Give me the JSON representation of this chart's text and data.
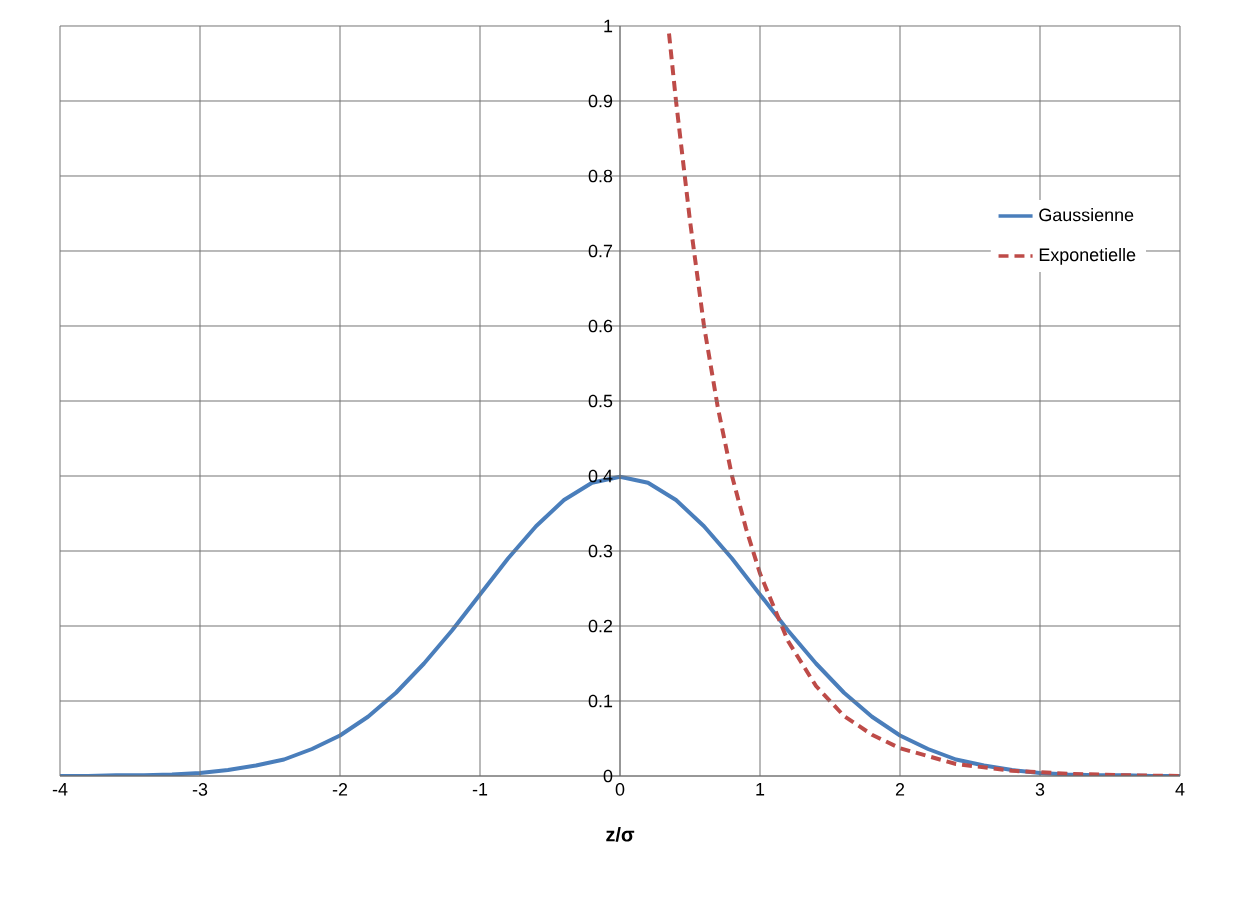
{
  "chart_data": {
    "type": "line",
    "xlabel": "**z/σ**",
    "xlim": [
      -4,
      4
    ],
    "xticks": [
      -4,
      -3,
      -2,
      -1,
      0,
      1,
      2,
      3,
      4
    ],
    "ylim": [
      0,
      1
    ],
    "yticks": [
      0,
      0.1,
      0.2,
      0.3,
      0.4,
      0.5,
      0.6,
      0.7,
      0.8,
      0.9,
      1
    ],
    "grid": true,
    "legend": "right",
    "marker": "none",
    "series": [
      {
        "name": "Gaussienne",
        "color": "#4a7ebb",
        "line_style": "solid",
        "x": [
          -4,
          -3.8,
          -3.6,
          -3.4,
          -3.2,
          -3,
          -2.8,
          -2.6,
          -2.4,
          -2.2,
          -2,
          -1.8,
          -1.6,
          -1.4,
          -1.2,
          -1,
          -0.8,
          -0.6,
          -0.4,
          -0.2,
          0,
          0.2,
          0.4,
          0.6,
          0.8,
          1,
          1.2,
          1.4,
          1.6,
          1.8,
          2,
          2.2,
          2.4,
          2.6,
          2.8,
          3,
          3.2,
          3.4,
          3.6,
          3.8,
          4
        ],
        "values": [
          0,
          0,
          0.001,
          0.001,
          0.002,
          0.004,
          0.008,
          0.014,
          0.022,
          0.036,
          0.054,
          0.079,
          0.111,
          0.15,
          0.194,
          0.242,
          0.29,
          0.333,
          0.368,
          0.391,
          0.399,
          0.391,
          0.368,
          0.333,
          0.29,
          0.242,
          0.194,
          0.15,
          0.111,
          0.079,
          0.054,
          0.036,
          0.022,
          0.014,
          0.008,
          0.004,
          0.002,
          0.001,
          0.001,
          0,
          0
        ]
      },
      {
        "name": "Exponetielle",
        "color": "#be4b48",
        "line_style": "dashed",
        "x": [
          0.35,
          0.4,
          0.5,
          0.6,
          0.7,
          0.8,
          0.9,
          1,
          1.2,
          1.4,
          1.6,
          1.8,
          2,
          2.4,
          2.8,
          3.2,
          3.6,
          4
        ],
        "values": [
          0.99,
          0.9,
          0.74,
          0.6,
          0.49,
          0.4,
          0.33,
          0.27,
          0.18,
          0.12,
          0.08,
          0.055,
          0.037,
          0.016,
          0.007,
          0.003,
          0.001,
          0
        ]
      }
    ]
  }
}
